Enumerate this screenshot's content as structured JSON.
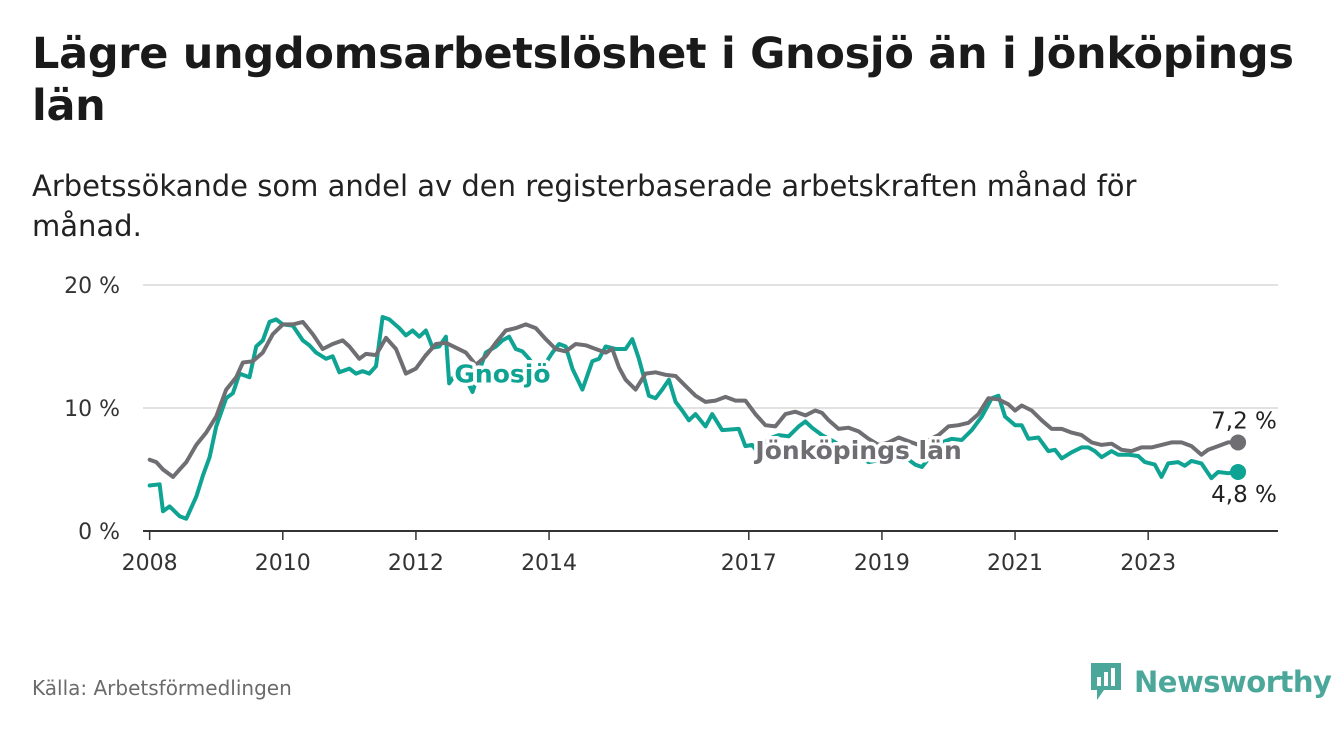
{
  "title": "Lägre ungdomsarbetslöshet i Gnosjö än i Jönköpings län",
  "subtitle": "Arbetssökande som andel av den registerbaserade arbetskraften månad för månad.",
  "source": "Källa: Arbetsförmedlingen",
  "brand": "Newsworthy",
  "colors": {
    "gnosjo": "#0fa393",
    "lan": "#6e6e73",
    "grid": "#d9d9d9",
    "brand": "#4aa79a"
  },
  "chart_data": {
    "type": "line",
    "title": "Lägre ungdomsarbetslöshet i Gnosjö än i Jönköpings län",
    "xlabel": "",
    "ylabel": "",
    "xlim": [
      2007.9,
      2024.95
    ],
    "ylim": [
      0,
      20
    ],
    "y_ticks": [
      {
        "value": 0,
        "label": "0 %"
      },
      {
        "value": 10,
        "label": "10 %"
      },
      {
        "value": 20,
        "label": "20 %"
      }
    ],
    "x_ticks": [
      {
        "value": 2008,
        "label": "2008"
      },
      {
        "value": 2010,
        "label": "2010"
      },
      {
        "value": 2012,
        "label": "2012"
      },
      {
        "value": 2014,
        "label": "2014"
      },
      {
        "value": 2017,
        "label": "2017"
      },
      {
        "value": 2019,
        "label": "2019"
      },
      {
        "value": 2021,
        "label": "2021"
      },
      {
        "value": 2023,
        "label": "2023"
      }
    ],
    "series": [
      {
        "name": "Gnosjö",
        "key": "gnosjo",
        "end_label": "4,8 %",
        "points": [
          [
            2008.0,
            3.7
          ],
          [
            2008.15,
            3.8
          ],
          [
            2008.2,
            1.6
          ],
          [
            2008.3,
            2.0
          ],
          [
            2008.45,
            1.2
          ],
          [
            2008.55,
            1.0
          ],
          [
            2008.7,
            2.8
          ],
          [
            2008.8,
            4.5
          ],
          [
            2008.9,
            6.0
          ],
          [
            2009.0,
            8.5
          ],
          [
            2009.15,
            10.8
          ],
          [
            2009.25,
            11.2
          ],
          [
            2009.35,
            12.8
          ],
          [
            2009.5,
            12.5
          ],
          [
            2009.6,
            15.0
          ],
          [
            2009.7,
            15.5
          ],
          [
            2009.8,
            17.0
          ],
          [
            2009.9,
            17.2
          ],
          [
            2010.0,
            16.8
          ],
          [
            2010.15,
            16.7
          ],
          [
            2010.3,
            15.5
          ],
          [
            2010.4,
            15.1
          ],
          [
            2010.5,
            14.5
          ],
          [
            2010.65,
            14.0
          ],
          [
            2010.75,
            14.2
          ],
          [
            2010.85,
            12.9
          ],
          [
            2011.0,
            13.2
          ],
          [
            2011.1,
            12.8
          ],
          [
            2011.2,
            13.0
          ],
          [
            2011.3,
            12.8
          ],
          [
            2011.4,
            13.4
          ],
          [
            2011.5,
            17.4
          ],
          [
            2011.6,
            17.2
          ],
          [
            2011.75,
            16.5
          ],
          [
            2011.85,
            15.9
          ],
          [
            2011.95,
            16.3
          ],
          [
            2012.05,
            15.8
          ],
          [
            2012.15,
            16.3
          ],
          [
            2012.25,
            14.9
          ],
          [
            2012.35,
            15.0
          ],
          [
            2012.45,
            15.8
          ],
          [
            2012.5,
            12.0
          ],
          [
            2012.6,
            12.8
          ],
          [
            2012.75,
            12.4
          ],
          [
            2012.85,
            11.3
          ],
          [
            2012.95,
            13.0
          ],
          [
            2013.05,
            14.5
          ],
          [
            2013.2,
            15.0
          ],
          [
            2013.3,
            15.5
          ],
          [
            2013.4,
            15.8
          ],
          [
            2013.5,
            14.8
          ],
          [
            2013.6,
            14.6
          ],
          [
            2013.7,
            14.0
          ],
          [
            2013.85,
            12.8
          ],
          [
            2014.05,
            14.5
          ],
          [
            2014.15,
            15.2
          ],
          [
            2014.25,
            15.0
          ],
          [
            2014.35,
            13.2
          ],
          [
            2014.5,
            11.5
          ],
          [
            2014.65,
            13.8
          ],
          [
            2014.75,
            14.0
          ],
          [
            2014.85,
            15.0
          ],
          [
            2015.0,
            14.8
          ],
          [
            2015.15,
            14.8
          ],
          [
            2015.25,
            15.6
          ],
          [
            2015.35,
            14.0
          ],
          [
            2015.5,
            11.0
          ],
          [
            2015.6,
            10.8
          ],
          [
            2015.7,
            11.5
          ],
          [
            2015.8,
            12.3
          ],
          [
            2015.9,
            10.5
          ],
          [
            2016.0,
            9.8
          ],
          [
            2016.1,
            9.0
          ],
          [
            2016.2,
            9.5
          ],
          [
            2016.35,
            8.5
          ],
          [
            2016.45,
            9.5
          ],
          [
            2016.6,
            8.2
          ],
          [
            2016.85,
            8.3
          ],
          [
            2016.95,
            6.9
          ],
          [
            2017.05,
            7.0
          ],
          [
            2017.15,
            6.3
          ],
          [
            2017.3,
            7.5
          ],
          [
            2017.45,
            7.8
          ],
          [
            2017.6,
            7.7
          ],
          [
            2017.75,
            8.5
          ],
          [
            2017.85,
            8.9
          ],
          [
            2017.95,
            8.4
          ],
          [
            2018.1,
            7.8
          ],
          [
            2018.3,
            7.2
          ],
          [
            2018.5,
            6.5
          ],
          [
            2018.8,
            5.6
          ],
          [
            2019.0,
            5.8
          ],
          [
            2019.2,
            6.2
          ],
          [
            2019.35,
            6.0
          ],
          [
            2019.5,
            5.4
          ],
          [
            2019.6,
            5.2
          ],
          [
            2019.75,
            6.2
          ],
          [
            2019.9,
            7.2
          ],
          [
            2020.05,
            7.5
          ],
          [
            2020.2,
            7.4
          ],
          [
            2020.35,
            8.2
          ],
          [
            2020.5,
            9.3
          ],
          [
            2020.65,
            10.8
          ],
          [
            2020.75,
            11.0
          ],
          [
            2020.85,
            9.3
          ],
          [
            2021.0,
            8.6
          ],
          [
            2021.1,
            8.6
          ],
          [
            2021.2,
            7.5
          ],
          [
            2021.35,
            7.6
          ],
          [
            2021.5,
            6.5
          ],
          [
            2021.6,
            6.6
          ],
          [
            2021.7,
            5.9
          ],
          [
            2021.85,
            6.4
          ],
          [
            2022.0,
            6.8
          ],
          [
            2022.1,
            6.8
          ],
          [
            2022.2,
            6.5
          ],
          [
            2022.3,
            6.0
          ],
          [
            2022.45,
            6.5
          ],
          [
            2022.55,
            6.2
          ],
          [
            2022.7,
            6.2
          ],
          [
            2022.85,
            6.1
          ],
          [
            2022.95,
            5.6
          ],
          [
            2023.1,
            5.4
          ],
          [
            2023.2,
            4.4
          ],
          [
            2023.3,
            5.5
          ],
          [
            2023.45,
            5.6
          ],
          [
            2023.55,
            5.3
          ],
          [
            2023.65,
            5.7
          ],
          [
            2023.8,
            5.5
          ],
          [
            2023.95,
            4.3
          ],
          [
            2024.05,
            4.8
          ],
          [
            2024.2,
            4.7
          ],
          [
            2024.35,
            4.8
          ]
        ]
      },
      {
        "name": "Jönköpings län",
        "key": "lan",
        "end_label": "7,2 %",
        "points": [
          [
            2008.0,
            5.8
          ],
          [
            2008.1,
            5.6
          ],
          [
            2008.2,
            5.0
          ],
          [
            2008.35,
            4.4
          ],
          [
            2008.45,
            5.0
          ],
          [
            2008.55,
            5.6
          ],
          [
            2008.7,
            7.0
          ],
          [
            2008.85,
            8.0
          ],
          [
            2009.0,
            9.3
          ],
          [
            2009.15,
            11.5
          ],
          [
            2009.3,
            12.5
          ],
          [
            2009.4,
            13.7
          ],
          [
            2009.55,
            13.8
          ],
          [
            2009.7,
            14.5
          ],
          [
            2009.85,
            16.0
          ],
          [
            2010.0,
            16.8
          ],
          [
            2010.15,
            16.8
          ],
          [
            2010.3,
            17.0
          ],
          [
            2010.45,
            16.0
          ],
          [
            2010.6,
            14.8
          ],
          [
            2010.75,
            15.2
          ],
          [
            2010.9,
            15.5
          ],
          [
            2011.0,
            15.0
          ],
          [
            2011.15,
            14.0
          ],
          [
            2011.25,
            14.4
          ],
          [
            2011.4,
            14.3
          ],
          [
            2011.55,
            15.7
          ],
          [
            2011.7,
            14.8
          ],
          [
            2011.85,
            12.8
          ],
          [
            2012.0,
            13.2
          ],
          [
            2012.15,
            14.3
          ],
          [
            2012.3,
            15.2
          ],
          [
            2012.45,
            15.3
          ],
          [
            2012.6,
            14.9
          ],
          [
            2012.75,
            14.5
          ],
          [
            2012.9,
            13.5
          ],
          [
            2013.05,
            14.2
          ],
          [
            2013.2,
            15.3
          ],
          [
            2013.35,
            16.3
          ],
          [
            2013.5,
            16.5
          ],
          [
            2013.65,
            16.8
          ],
          [
            2013.8,
            16.5
          ],
          [
            2013.95,
            15.6
          ],
          [
            2014.1,
            14.8
          ],
          [
            2014.25,
            14.6
          ],
          [
            2014.4,
            15.2
          ],
          [
            2014.55,
            15.1
          ],
          [
            2014.7,
            14.8
          ],
          [
            2014.85,
            14.5
          ],
          [
            2014.95,
            14.8
          ],
          [
            2015.05,
            13.3
          ],
          [
            2015.15,
            12.3
          ],
          [
            2015.3,
            11.5
          ],
          [
            2015.45,
            12.8
          ],
          [
            2015.6,
            12.9
          ],
          [
            2015.75,
            12.7
          ],
          [
            2015.9,
            12.6
          ],
          [
            2016.05,
            11.8
          ],
          [
            2016.2,
            11.0
          ],
          [
            2016.35,
            10.5
          ],
          [
            2016.5,
            10.6
          ],
          [
            2016.65,
            10.9
          ],
          [
            2016.8,
            10.6
          ],
          [
            2016.95,
            10.6
          ],
          [
            2017.1,
            9.5
          ],
          [
            2017.25,
            8.6
          ],
          [
            2017.4,
            8.5
          ],
          [
            2017.55,
            9.5
          ],
          [
            2017.7,
            9.7
          ],
          [
            2017.85,
            9.4
          ],
          [
            2018.0,
            9.8
          ],
          [
            2018.1,
            9.6
          ],
          [
            2018.2,
            9.0
          ],
          [
            2018.35,
            8.3
          ],
          [
            2018.5,
            8.4
          ],
          [
            2018.65,
            8.1
          ],
          [
            2018.8,
            7.5
          ],
          [
            2018.95,
            7.0
          ],
          [
            2019.1,
            7.2
          ],
          [
            2019.25,
            7.6
          ],
          [
            2019.4,
            7.3
          ],
          [
            2019.55,
            7.0
          ],
          [
            2019.7,
            7.4
          ],
          [
            2019.85,
            7.8
          ],
          [
            2020.0,
            8.5
          ],
          [
            2020.15,
            8.6
          ],
          [
            2020.3,
            8.8
          ],
          [
            2020.45,
            9.5
          ],
          [
            2020.6,
            10.8
          ],
          [
            2020.75,
            10.7
          ],
          [
            2020.9,
            10.3
          ],
          [
            2021.0,
            9.8
          ],
          [
            2021.1,
            10.2
          ],
          [
            2021.25,
            9.8
          ],
          [
            2021.4,
            9.0
          ],
          [
            2021.55,
            8.3
          ],
          [
            2021.7,
            8.3
          ],
          [
            2021.85,
            8.0
          ],
          [
            2022.0,
            7.8
          ],
          [
            2022.15,
            7.2
          ],
          [
            2022.3,
            7.0
          ],
          [
            2022.45,
            7.1
          ],
          [
            2022.6,
            6.6
          ],
          [
            2022.75,
            6.5
          ],
          [
            2022.9,
            6.8
          ],
          [
            2023.05,
            6.8
          ],
          [
            2023.2,
            7.0
          ],
          [
            2023.35,
            7.2
          ],
          [
            2023.5,
            7.2
          ],
          [
            2023.65,
            6.9
          ],
          [
            2023.8,
            6.2
          ],
          [
            2023.9,
            6.6
          ],
          [
            2024.05,
            6.9
          ],
          [
            2024.2,
            7.2
          ],
          [
            2024.35,
            7.2
          ]
        ]
      }
    ],
    "annotations": [
      {
        "series": "gnosjo",
        "text": "Gnosjö",
        "x": 2013.3,
        "y": 12.8
      },
      {
        "series": "lan",
        "text": "Jönköpings län",
        "x": 2018.65,
        "y": 6.6
      }
    ]
  }
}
